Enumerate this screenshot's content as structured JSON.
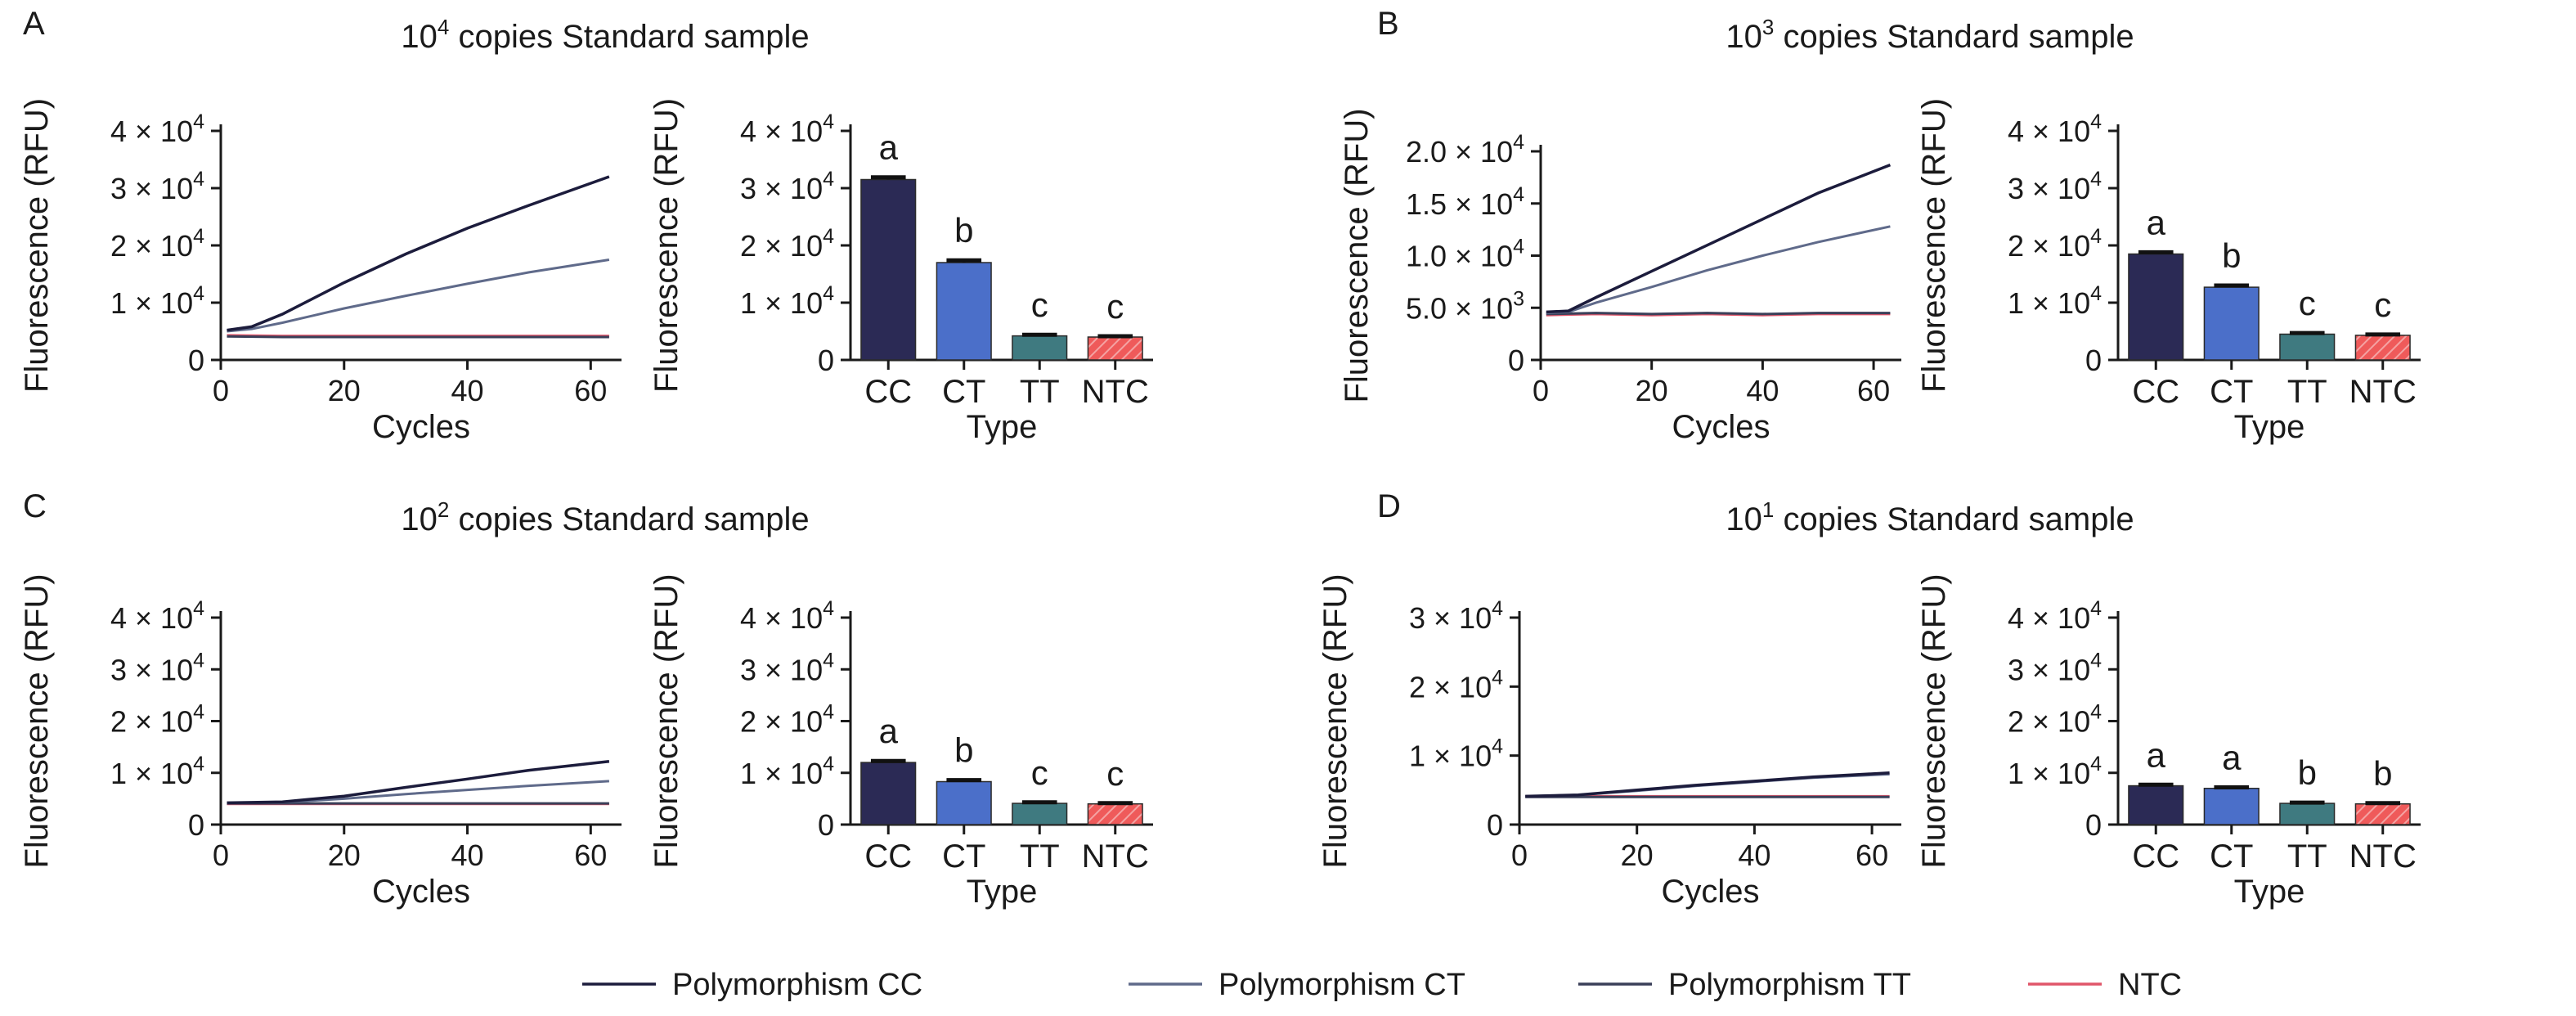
{
  "colors": {
    "CC": "#1c1c3c",
    "CT": "#5f6a8a",
    "TT": "#3a3f58",
    "NTC": "#e0566a",
    "bar_CC": "#2b2a55",
    "bar_CT": "#4b6fc9",
    "bar_TT": "#3f7a80",
    "bar_NTC": "#ef5a5a"
  },
  "legend": [
    {
      "key": "CC",
      "label": "Polymorphism CC"
    },
    {
      "key": "CT",
      "label": "Polymorphism CT"
    },
    {
      "key": "TT",
      "label": "Polymorphism TT"
    },
    {
      "key": "NTC",
      "label": "NTC"
    }
  ],
  "panels": [
    {
      "letter": "A",
      "title_base": "10",
      "title_exp": "4",
      "title_rest": " copies Standard sample"
    },
    {
      "letter": "B",
      "title_base": "10",
      "title_exp": "3",
      "title_rest": " copies Standard sample"
    },
    {
      "letter": "C",
      "title_base": "10",
      "title_exp": "2",
      "title_rest": " copies Standard sample"
    },
    {
      "letter": "D",
      "title_base": "10",
      "title_exp": "1",
      "title_rest": " copies Standard sample"
    }
  ],
  "chart_data": [
    {
      "panel": "A",
      "type": "line",
      "xlabel": "Cycles",
      "ylabel": "Fluorescence (RFU)",
      "xlim": [
        0,
        65
      ],
      "ylim": [
        0,
        40000
      ],
      "xticks": [
        "0",
        "20",
        "40",
        "60"
      ],
      "yticks": [
        {
          "m": "",
          "e": "",
          "t": "0"
        },
        {
          "m": "1 × 10",
          "e": "4"
        },
        {
          "m": "2 × 10",
          "e": "4"
        },
        {
          "m": "3 × 10",
          "e": "4"
        },
        {
          "m": "4 × 10",
          "e": "4"
        }
      ],
      "series": [
        {
          "key": "CC",
          "x": [
            1,
            5,
            10,
            20,
            30,
            40,
            50,
            63
          ],
          "y": [
            5200,
            5800,
            8000,
            13500,
            18500,
            23000,
            27000,
            32000
          ]
        },
        {
          "key": "CT",
          "x": [
            1,
            5,
            10,
            20,
            30,
            40,
            50,
            63
          ],
          "y": [
            5000,
            5400,
            6500,
            9000,
            11200,
            13300,
            15300,
            17500
          ]
        },
        {
          "key": "TT",
          "x": [
            1,
            10,
            20,
            30,
            40,
            50,
            63
          ],
          "y": [
            4100,
            4000,
            4000,
            4000,
            4000,
            4000,
            4000
          ]
        },
        {
          "key": "NTC",
          "x": [
            1,
            10,
            20,
            30,
            40,
            50,
            63
          ],
          "y": [
            4300,
            4200,
            4200,
            4200,
            4200,
            4200,
            4200
          ]
        }
      ]
    },
    {
      "panel": "A",
      "type": "bar",
      "xlabel": "Type",
      "ylabel": "Fluorescence (RFU)",
      "ylim": [
        0,
        40000
      ],
      "yticks": [
        {
          "m": "",
          "e": "",
          "t": "0"
        },
        {
          "m": "1 × 10",
          "e": "4"
        },
        {
          "m": "2 × 10",
          "e": "4"
        },
        {
          "m": "3 × 10",
          "e": "4"
        },
        {
          "m": "4 × 10",
          "e": "4"
        }
      ],
      "categories": [
        "CC",
        "CT",
        "TT",
        "NTC"
      ],
      "values": [
        31500,
        17000,
        4200,
        4000
      ],
      "errors": [
        400,
        400,
        200,
        150
      ],
      "letters": [
        "a",
        "b",
        "c",
        "c"
      ]
    },
    {
      "panel": "B",
      "type": "line",
      "xlabel": "Cycles",
      "ylabel": "Fluorescence (RFU)",
      "xlim": [
        0,
        65
      ],
      "ylim": [
        0,
        20000
      ],
      "xticks": [
        "0",
        "20",
        "40",
        "60"
      ],
      "yticks": [
        {
          "m": "",
          "e": "",
          "t": "0"
        },
        {
          "m": "5.0 × 10",
          "e": "3"
        },
        {
          "m": "1.0 × 10",
          "e": "4"
        },
        {
          "m": "1.5 × 10",
          "e": "4"
        },
        {
          "m": "2.0 × 10",
          "e": "4"
        }
      ],
      "series": [
        {
          "key": "CC",
          "x": [
            1,
            5,
            10,
            20,
            30,
            40,
            50,
            63
          ],
          "y": [
            4600,
            4700,
            6000,
            8500,
            11000,
            13500,
            16000,
            18700
          ]
        },
        {
          "key": "CT",
          "x": [
            1,
            5,
            10,
            20,
            30,
            40,
            50,
            63
          ],
          "y": [
            4500,
            4600,
            5500,
            7000,
            8600,
            10000,
            11300,
            12800
          ]
        },
        {
          "key": "TT",
          "x": [
            1,
            10,
            20,
            30,
            40,
            50,
            63
          ],
          "y": [
            4400,
            4500,
            4400,
            4500,
            4400,
            4500,
            4500
          ]
        },
        {
          "key": "NTC",
          "x": [
            1,
            10,
            20,
            30,
            40,
            50,
            63
          ],
          "y": [
            4300,
            4400,
            4300,
            4400,
            4300,
            4400,
            4400
          ]
        }
      ]
    },
    {
      "panel": "B",
      "type": "bar",
      "xlabel": "Type",
      "ylabel": "Fluorescence (RFU)",
      "ylim": [
        0,
        40000
      ],
      "yticks": [
        {
          "m": "",
          "e": "",
          "t": "0"
        },
        {
          "m": "1 × 10",
          "e": "4"
        },
        {
          "m": "2 × 10",
          "e": "4"
        },
        {
          "m": "3 × 10",
          "e": "4"
        },
        {
          "m": "4 × 10",
          "e": "4"
        }
      ],
      "categories": [
        "CC",
        "CT",
        "TT",
        "NTC"
      ],
      "values": [
        18500,
        12700,
        4500,
        4300
      ],
      "errors": [
        300,
        300,
        200,
        150
      ],
      "letters": [
        "a",
        "b",
        "c",
        "c"
      ]
    },
    {
      "panel": "C",
      "type": "line",
      "xlabel": "Cycles",
      "ylabel": "Fluorescence (RFU)",
      "xlim": [
        0,
        65
      ],
      "ylim": [
        0,
        40000
      ],
      "xticks": [
        "0",
        "20",
        "40",
        "60"
      ],
      "yticks": [
        {
          "m": "",
          "e": "",
          "t": "0"
        },
        {
          "m": "1 × 10",
          "e": "4"
        },
        {
          "m": "2 × 10",
          "e": "4"
        },
        {
          "m": "3 × 10",
          "e": "4"
        },
        {
          "m": "4 × 10",
          "e": "4"
        }
      ],
      "series": [
        {
          "key": "CC",
          "x": [
            1,
            10,
            20,
            30,
            40,
            50,
            63
          ],
          "y": [
            4200,
            4400,
            5500,
            7200,
            8800,
            10500,
            12200
          ]
        },
        {
          "key": "CT",
          "x": [
            1,
            10,
            20,
            30,
            40,
            50,
            63
          ],
          "y": [
            4200,
            4300,
            5000,
            5900,
            6700,
            7500,
            8400
          ]
        },
        {
          "key": "TT",
          "x": [
            1,
            10,
            20,
            30,
            40,
            50,
            63
          ],
          "y": [
            4100,
            4100,
            4100,
            4100,
            4100,
            4100,
            4100
          ]
        },
        {
          "key": "NTC",
          "x": [
            1,
            10,
            20,
            30,
            40,
            50,
            63
          ],
          "y": [
            4000,
            4000,
            4000,
            4000,
            4000,
            4000,
            4000
          ]
        }
      ]
    },
    {
      "panel": "C",
      "type": "bar",
      "xlabel": "Type",
      "ylabel": "Fluorescence (RFU)",
      "ylim": [
        0,
        40000
      ],
      "yticks": [
        {
          "m": "",
          "e": "",
          "t": "0"
        },
        {
          "m": "1 × 10",
          "e": "4"
        },
        {
          "m": "2 × 10",
          "e": "4"
        },
        {
          "m": "3 × 10",
          "e": "4"
        },
        {
          "m": "4 × 10",
          "e": "4"
        }
      ],
      "categories": [
        "CC",
        "CT",
        "TT",
        "NTC"
      ],
      "values": [
        12000,
        8300,
        4100,
        4000
      ],
      "errors": [
        300,
        300,
        200,
        150
      ],
      "letters": [
        "a",
        "b",
        "c",
        "c"
      ]
    },
    {
      "panel": "D",
      "type": "line",
      "xlabel": "Cycles",
      "ylabel": "Fluorescence (RFU)",
      "xlim": [
        0,
        65
      ],
      "ylim": [
        0,
        30000
      ],
      "xticks": [
        "0",
        "20",
        "40",
        "60"
      ],
      "yticks": [
        {
          "m": "",
          "e": "",
          "t": "0"
        },
        {
          "m": "1 × 10",
          "e": "4"
        },
        {
          "m": "2 × 10",
          "e": "4"
        },
        {
          "m": "3 × 10",
          "e": "4"
        }
      ],
      "series": [
        {
          "key": "CC",
          "x": [
            1,
            10,
            20,
            30,
            40,
            50,
            63
          ],
          "y": [
            4100,
            4300,
            5000,
            5700,
            6300,
            6900,
            7500
          ]
        },
        {
          "key": "CT",
          "x": [
            1,
            10,
            20,
            30,
            40,
            50,
            63
          ],
          "y": [
            4100,
            4300,
            4900,
            5600,
            6200,
            6800,
            7300
          ]
        },
        {
          "key": "TT",
          "x": [
            1,
            10,
            20,
            30,
            40,
            50,
            63
          ],
          "y": [
            4000,
            4000,
            4000,
            4000,
            4000,
            4000,
            4000
          ]
        },
        {
          "key": "NTC",
          "x": [
            1,
            10,
            20,
            30,
            40,
            50,
            63
          ],
          "y": [
            4100,
            4100,
            4100,
            4100,
            4100,
            4100,
            4100
          ]
        }
      ]
    },
    {
      "panel": "D",
      "type": "bar",
      "xlabel": "Type",
      "ylabel": "Fluorescence (RFU)",
      "ylim": [
        0,
        40000
      ],
      "yticks": [
        {
          "m": "",
          "e": "",
          "t": "0"
        },
        {
          "m": "1 × 10",
          "e": "4"
        },
        {
          "m": "2 × 10",
          "e": "4"
        },
        {
          "m": "3 × 10",
          "e": "4"
        },
        {
          "m": "4 × 10",
          "e": "4"
        }
      ],
      "categories": [
        "CC",
        "CT",
        "TT",
        "NTC"
      ],
      "values": [
        7500,
        7000,
        4100,
        4000
      ],
      "errors": [
        200,
        200,
        150,
        150
      ],
      "letters": [
        "a",
        "a",
        "b",
        "b"
      ]
    }
  ]
}
